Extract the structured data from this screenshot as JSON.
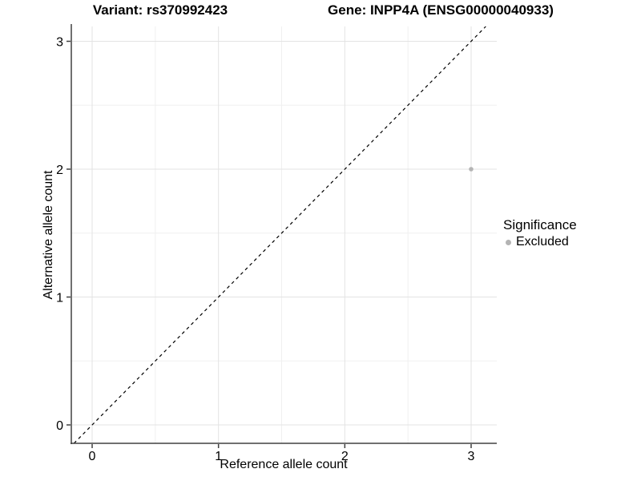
{
  "header": {
    "title_left": "Variant: rs370992423",
    "title_right": "Gene: INPP4A (ENSG00000040933)"
  },
  "chart_data": {
    "type": "scatter",
    "title_left": "Variant: rs370992423",
    "title_right": "Gene: INPP4A (ENSG00000040933)",
    "xlabel": "Reference allele count",
    "ylabel": "Alternative allele count",
    "x_ticks": [
      0,
      1,
      2,
      3
    ],
    "y_ticks": [
      0,
      1,
      2,
      3
    ],
    "x_minor_ticks": [
      0.5,
      1.5,
      2.5
    ],
    "y_minor_ticks": [
      0.5,
      1.5,
      2.5
    ],
    "xlim": [
      -0.165,
      3.203
    ],
    "ylim": [
      -0.144,
      3.116
    ],
    "grid": true,
    "identity_line": {
      "style": "dashed",
      "color": "#000000",
      "slope": 1,
      "intercept": 0
    },
    "series": [
      {
        "name": "Excluded",
        "color": "#b4b4b4",
        "points": [
          {
            "x": 3,
            "y": 2
          }
        ]
      }
    ],
    "legend": {
      "position": "right",
      "title": "Significance",
      "items": [
        {
          "label": "Excluded",
          "color": "#b4b4b4"
        }
      ]
    }
  },
  "colors": {
    "background": "#ffffff",
    "grid_major": "#e3e3e3",
    "grid_minor": "#f0f0f0",
    "axis_line": "#404040",
    "text": "#000000",
    "point": "#b4b4b4"
  }
}
